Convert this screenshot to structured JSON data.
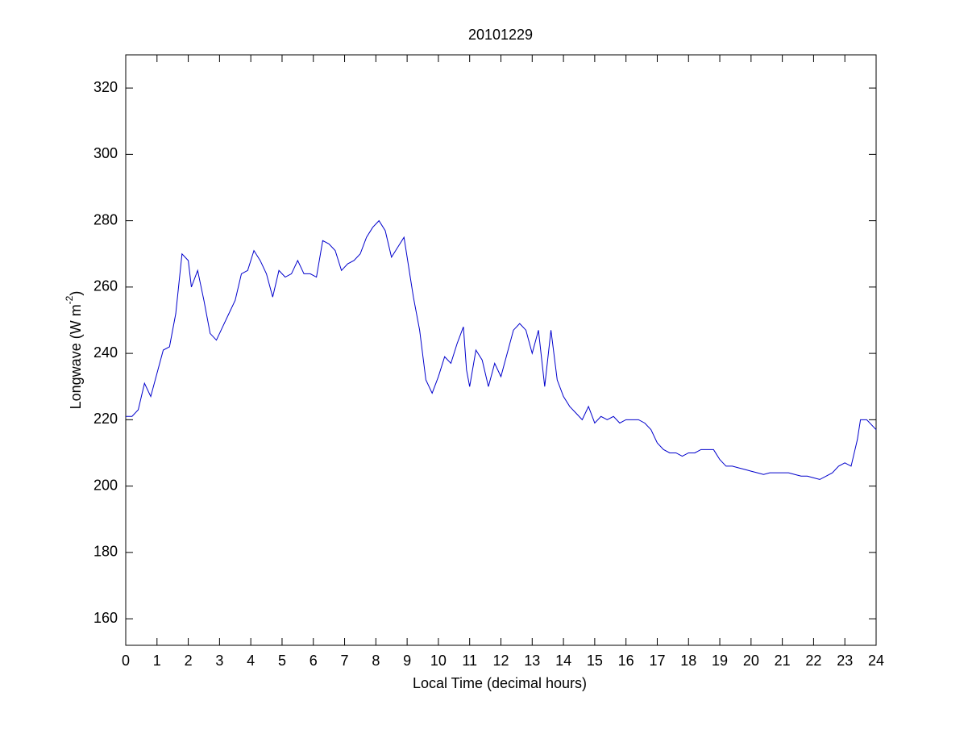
{
  "chart_data": {
    "type": "line",
    "title": "20101229",
    "xlabel": "Local Time (decimal hours)",
    "ylabel": [
      "Longwave (W m",
      "-2",
      ")"
    ],
    "x": [
      0,
      0.2,
      0.4,
      0.6,
      0.8,
      1.0,
      1.2,
      1.4,
      1.6,
      1.8,
      2.0,
      2.1,
      2.3,
      2.5,
      2.7,
      2.9,
      3.1,
      3.3,
      3.5,
      3.7,
      3.9,
      4.1,
      4.3,
      4.5,
      4.7,
      4.9,
      5.1,
      5.3,
      5.5,
      5.7,
      5.9,
      6.1,
      6.3,
      6.5,
      6.7,
      6.9,
      7.1,
      7.3,
      7.5,
      7.7,
      7.9,
      8.1,
      8.3,
      8.5,
      8.7,
      8.9,
      9.0,
      9.2,
      9.4,
      9.6,
      9.8,
      10.0,
      10.2,
      10.4,
      10.6,
      10.8,
      10.9,
      11.0,
      11.2,
      11.4,
      11.6,
      11.8,
      12.0,
      12.2,
      12.4,
      12.6,
      12.8,
      13.0,
      13.2,
      13.4,
      13.6,
      13.8,
      14.0,
      14.2,
      14.4,
      14.6,
      14.8,
      15.0,
      15.2,
      15.4,
      15.6,
      15.8,
      16.0,
      16.2,
      16.4,
      16.6,
      16.8,
      17.0,
      17.2,
      17.4,
      17.6,
      17.8,
      18.0,
      18.2,
      18.4,
      18.6,
      18.8,
      19.0,
      19.2,
      19.4,
      19.6,
      19.8,
      20.0,
      20.2,
      20.4,
      20.6,
      20.8,
      21.0,
      21.2,
      21.4,
      21.6,
      21.8,
      22.0,
      22.2,
      22.4,
      22.6,
      22.8,
      23.0,
      23.2,
      23.4,
      23.5,
      23.7,
      23.9,
      24.0
    ],
    "series": [
      {
        "name": "Longwave",
        "color": "#0000cc",
        "values": [
          221,
          221,
          223,
          231,
          227,
          234,
          241,
          242,
          252,
          270,
          268,
          260,
          265,
          256,
          246,
          244,
          248,
          252,
          256,
          264,
          265,
          271,
          268,
          264,
          257,
          265,
          263,
          264,
          268,
          264,
          264,
          263,
          274,
          273,
          271,
          265,
          267,
          268,
          270,
          275,
          278,
          280,
          277,
          269,
          272,
          275,
          269,
          257,
          247,
          232,
          228,
          233,
          239,
          237,
          243,
          248,
          235,
          230,
          241,
          238,
          230,
          237,
          233,
          240,
          247,
          249,
          247,
          240,
          247,
          230,
          247,
          232,
          227,
          224,
          222,
          220,
          224,
          219,
          221,
          220,
          221,
          219,
          220,
          220,
          220,
          219,
          217,
          213,
          211,
          210,
          210,
          209,
          210,
          210,
          211,
          211,
          211,
          208,
          206,
          206,
          205.5,
          205,
          204.5,
          204,
          203.5,
          204,
          204,
          204,
          204,
          203.5,
          203,
          203,
          202.5,
          202,
          203,
          204,
          206,
          207,
          206,
          214,
          220,
          220,
          218,
          217
        ]
      }
    ],
    "xlim": [
      0,
      24
    ],
    "xticks": [
      0,
      1,
      2,
      3,
      4,
      5,
      6,
      7,
      8,
      9,
      10,
      11,
      12,
      13,
      14,
      15,
      16,
      17,
      18,
      19,
      20,
      21,
      22,
      23,
      24
    ],
    "ylim": [
      152,
      330
    ],
    "yticks": [
      160,
      180,
      200,
      220,
      240,
      260,
      280,
      300,
      320
    ],
    "grid": false
  }
}
